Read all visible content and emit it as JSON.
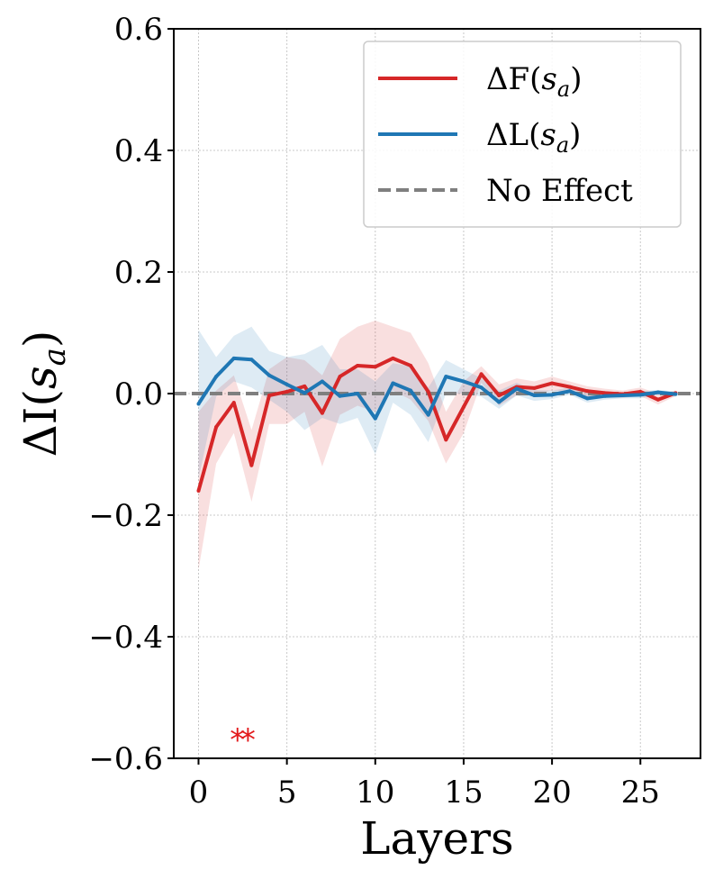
{
  "chart_data": {
    "type": "line",
    "title": "",
    "xlabel": "Layers",
    "ylabel": "ΔI(s_a)",
    "xlim": [
      -1.4,
      28.4
    ],
    "ylim": [
      -0.6,
      0.6
    ],
    "xticks": [
      0,
      5,
      10,
      15,
      20,
      25
    ],
    "xtick_labels": [
      "0",
      "5",
      "10",
      "15",
      "20",
      "25"
    ],
    "yticks": [
      0.6,
      0.4,
      0.2,
      0.0,
      -0.2,
      -0.4,
      -0.6
    ],
    "ytick_labels": [
      "0.6",
      "0.4",
      "0.2",
      "0.0",
      "−0.2",
      "−0.4",
      "−0.6"
    ],
    "grid": true,
    "legend_position": "top-right",
    "x": [
      0,
      1,
      2,
      3,
      4,
      5,
      6,
      7,
      8,
      9,
      10,
      11,
      12,
      13,
      14,
      15,
      16,
      17,
      18,
      19,
      20,
      21,
      22,
      23,
      24,
      25,
      26,
      27
    ],
    "series": [
      {
        "name": "ΔF(s_a)",
        "color": "#d62728",
        "values": [
          -0.16,
          -0.055,
          -0.015,
          -0.118,
          -0.003,
          0.003,
          0.012,
          -0.032,
          0.028,
          0.046,
          0.044,
          0.058,
          0.046,
          0.003,
          -0.076,
          -0.022,
          0.032,
          -0.003,
          0.011,
          0.009,
          0.017,
          0.011,
          0.004,
          0.001,
          -0.001,
          0.003,
          -0.01,
          0.001
        ],
        "ci_upper": [
          -0.03,
          0.005,
          0.03,
          -0.06,
          0.04,
          0.06,
          0.055,
          0.03,
          0.09,
          0.11,
          0.12,
          0.11,
          0.1,
          0.05,
          -0.03,
          0.02,
          0.045,
          0.015,
          0.025,
          0.02,
          0.028,
          0.02,
          0.012,
          0.008,
          0.005,
          0.01,
          0.0,
          0.005
        ],
        "ci_lower": [
          -0.29,
          -0.115,
          -0.065,
          -0.178,
          -0.05,
          -0.05,
          -0.03,
          -0.12,
          -0.035,
          -0.02,
          -0.03,
          0.005,
          -0.01,
          -0.045,
          -0.115,
          -0.065,
          0.018,
          -0.02,
          -0.003,
          -0.002,
          0.005,
          0.002,
          -0.005,
          -0.006,
          -0.007,
          -0.004,
          -0.018,
          -0.004
        ]
      },
      {
        "name": "ΔL(s_a)",
        "color": "#1f77b4",
        "values": [
          -0.017,
          0.028,
          0.058,
          0.056,
          0.03,
          0.015,
          0.001,
          0.02,
          -0.004,
          0.0,
          -0.041,
          0.017,
          0.005,
          -0.035,
          0.028,
          0.02,
          0.01,
          -0.014,
          0.008,
          -0.003,
          -0.002,
          0.004,
          -0.008,
          -0.004,
          -0.003,
          -0.002,
          0.002,
          -0.001
        ],
        "ci_upper": [
          0.105,
          0.06,
          0.095,
          0.11,
          0.07,
          0.06,
          0.065,
          0.08,
          0.04,
          0.04,
          0.02,
          0.05,
          0.045,
          0.01,
          0.055,
          0.04,
          0.025,
          0.005,
          0.018,
          0.006,
          0.005,
          0.01,
          0.0,
          0.002,
          0.002,
          0.004,
          0.006,
          0.003
        ],
        "ci_lower": [
          -0.14,
          -0.005,
          0.02,
          0.01,
          -0.01,
          -0.03,
          -0.06,
          -0.04,
          -0.05,
          -0.04,
          -0.1,
          -0.015,
          -0.035,
          -0.08,
          0.0,
          0.0,
          -0.005,
          -0.025,
          -0.003,
          -0.012,
          -0.009,
          -0.002,
          -0.015,
          -0.01,
          -0.008,
          -0.008,
          -0.002,
          -0.005
        ]
      }
    ],
    "reference_line": {
      "name": "No Effect",
      "y": 0.0,
      "color": "#7f7f7f",
      "style": "dashed"
    },
    "annotations": [
      {
        "text": "*",
        "x": 2,
        "y": -0.56,
        "color": "#e31a1c"
      },
      {
        "text": "*",
        "x": 3,
        "y": -0.56,
        "color": "#e31a1c"
      }
    ],
    "legend": [
      {
        "label_main": "ΔF(",
        "label_var": "s",
        "label_sub": "a",
        "label_end": ")",
        "color": "#d62728",
        "style": "solid"
      },
      {
        "label_main": "ΔL(",
        "label_var": "s",
        "label_sub": "a",
        "label_end": ")",
        "color": "#1f77b4",
        "style": "solid"
      },
      {
        "label_main": "No Effect",
        "label_var": "",
        "label_sub": "",
        "label_end": "",
        "color": "#7f7f7f",
        "style": "dashed"
      }
    ],
    "ylabel_parts": {
      "main": "ΔI(",
      "var": "s",
      "sub": "a",
      "end": ")"
    }
  }
}
